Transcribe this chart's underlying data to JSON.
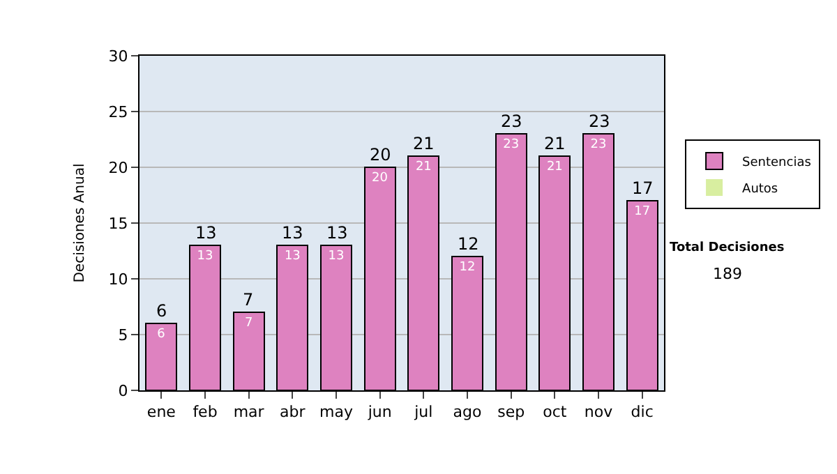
{
  "chart_data": {
    "type": "bar",
    "stacked": true,
    "ylabel": "Decisiones Anual",
    "categories": [
      "ene",
      "feb",
      "mar",
      "abr",
      "may",
      "jun",
      "jul",
      "ago",
      "sep",
      "oct",
      "nov",
      "dic"
    ],
    "series": [
      {
        "name": "Sentencias",
        "color": "#de82c0",
        "values": [
          6,
          13,
          7,
          13,
          13,
          20,
          21,
          12,
          23,
          21,
          23,
          17
        ],
        "value_labels": [
          "6",
          "13",
          "7",
          "13",
          "13",
          "20",
          "21",
          "12",
          "23",
          "21",
          "23",
          "17"
        ]
      },
      {
        "name": "Autos",
        "color": "#d8eea0",
        "values": [
          0,
          0,
          0,
          0,
          0,
          0,
          0,
          0,
          0,
          0,
          0,
          0
        ]
      }
    ],
    "totals": [
      "6",
      "13",
      "7",
      "13",
      "13",
      "20",
      "21",
      "12",
      "23",
      "21",
      "23",
      "17"
    ],
    "ylim": [
      0,
      30
    ],
    "yticks": [
      0,
      5,
      10,
      15,
      20,
      25,
      30
    ],
    "grid": "y",
    "legend": "right",
    "annotations": [
      "Total Decisiones",
      "189"
    ]
  }
}
